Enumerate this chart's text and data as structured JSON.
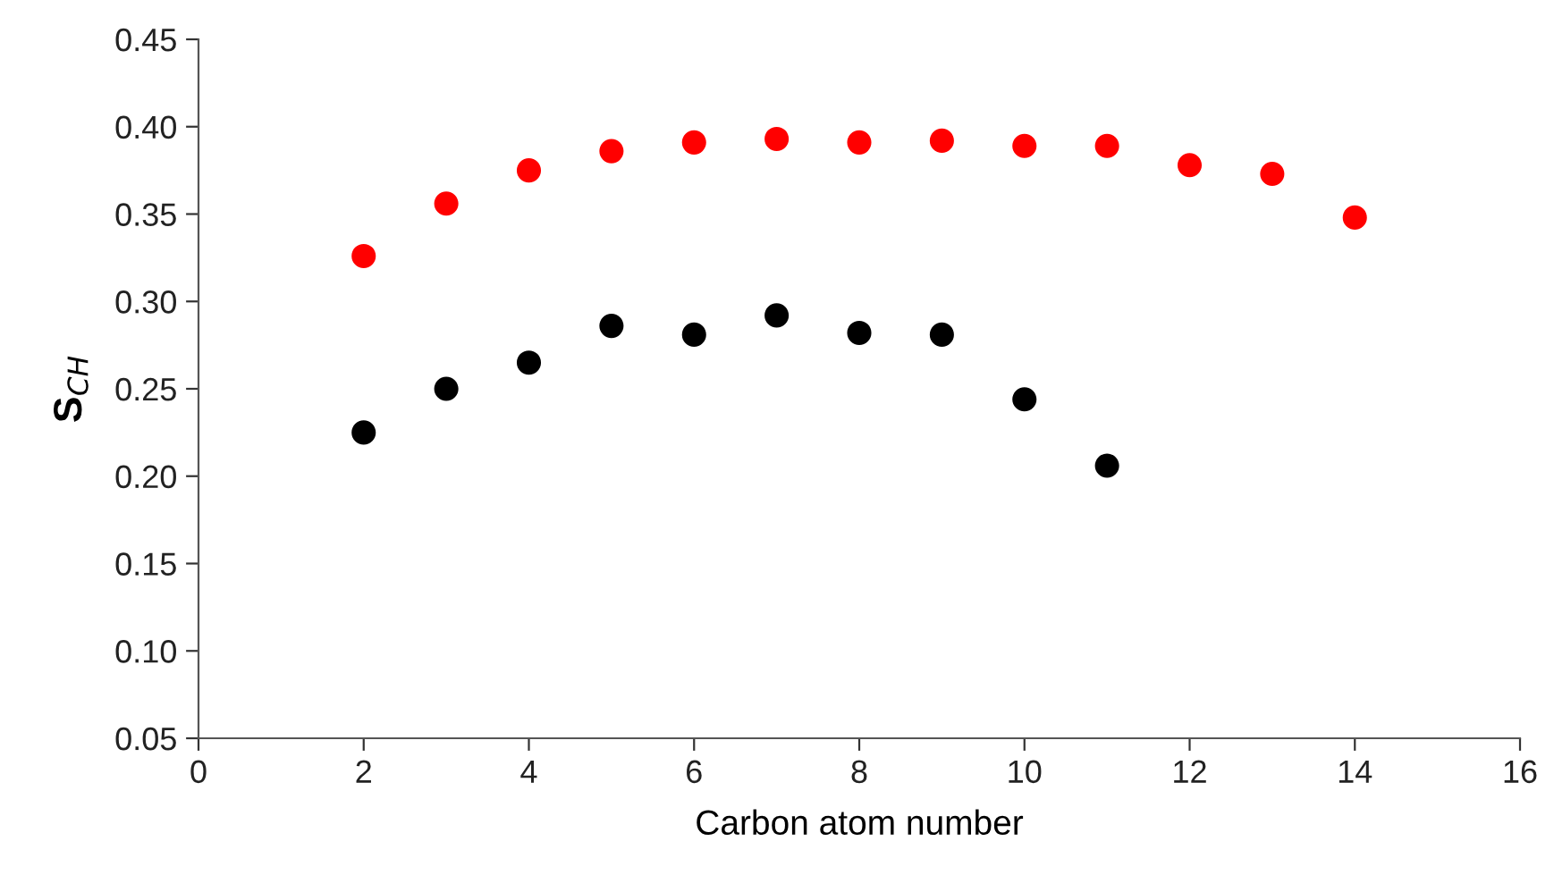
{
  "chart_data": {
    "type": "scatter",
    "xlabel": "Carbon atom number",
    "ylabel": "S$_{CH}$",
    "xlim": [
      0,
      16
    ],
    "xticks": [
      0,
      2,
      4,
      6,
      8,
      10,
      12,
      14,
      16
    ],
    "ylim": [
      0.05,
      0.45
    ],
    "yticks": [
      {
        "value": 0.05,
        "label": "0.05"
      },
      {
        "value": 0.1,
        "label": "0.10"
      },
      {
        "value": 0.15,
        "label": "0.15"
      },
      {
        "value": 0.2,
        "label": "0.20"
      },
      {
        "value": 0.25,
        "label": "0.25"
      },
      {
        "value": 0.3,
        "label": "0.30"
      },
      {
        "value": 0.35,
        "label": "0.35"
      },
      {
        "value": 0.4,
        "label": "0.40"
      },
      {
        "value": 0.45,
        "label": "0.45"
      }
    ],
    "grid": false,
    "marker": "circle",
    "series": [
      {
        "color": "#ff0000",
        "x": [
          2,
          3,
          4,
          5,
          6,
          7,
          8,
          9,
          10,
          11,
          12,
          13,
          14
        ],
        "values": [
          0.326,
          0.356,
          0.375,
          0.386,
          0.391,
          0.393,
          0.391,
          0.392,
          0.389,
          0.389,
          0.378,
          0.373,
          0.348
        ]
      },
      {
        "color": "#000000",
        "x": [
          2,
          3,
          4,
          5,
          6,
          7,
          8,
          9,
          10,
          11
        ],
        "values": [
          0.225,
          0.25,
          0.265,
          0.286,
          0.281,
          0.292,
          0.282,
          0.281,
          0.244,
          0.206
        ]
      }
    ]
  }
}
